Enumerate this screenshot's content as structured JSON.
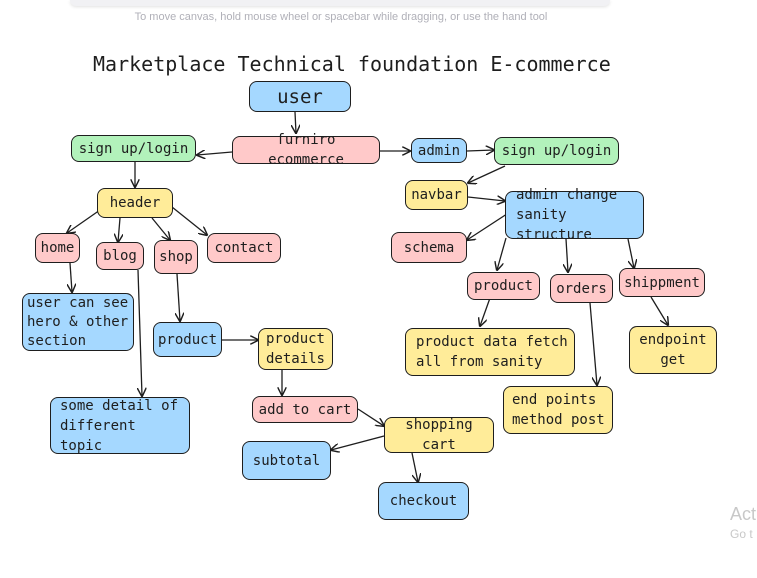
{
  "canvas": {
    "hint": "To move canvas, hold mouse wheel or spacebar while dragging, or use the hand tool"
  },
  "diagram": {
    "title": "Marketplace Technical foundation E-commerce",
    "nodes": {
      "user": "user",
      "signup_user": "sign up/login",
      "furniro": "furniro ecommerce",
      "admin": "admin",
      "signup_admin": "sign up/login",
      "navbar": "navbar",
      "admin_change": "admin change\nsanity structure",
      "schema": "schema",
      "product_admin": "product",
      "orders": "orders",
      "shippment": "shippment",
      "product_fetch": "product data fetch\nall from sanity",
      "endpoint_get": "endpoint\nget",
      "end_points_post": "end points\nmethod post",
      "header": "header",
      "home": "home",
      "blog": "blog",
      "shop": "shop",
      "contact": "contact",
      "user_can_see": "user can see\nhero & other\nsection",
      "some_detail": "some detail of\ndifferent topic",
      "product_shop": "product",
      "product_details": "product\ndetails",
      "add_to_cart": "add to cart",
      "shopping_cart": "shopping cart",
      "subtotal": "subtotal",
      "checkout": "checkout"
    }
  },
  "colors": {
    "blue": "#a5d8ff",
    "green": "#b2f2bb",
    "pink": "#ffc9c9",
    "yellow": "#ffec99"
  },
  "watermark": {
    "line1": "Act",
    "line2": "Go t"
  }
}
